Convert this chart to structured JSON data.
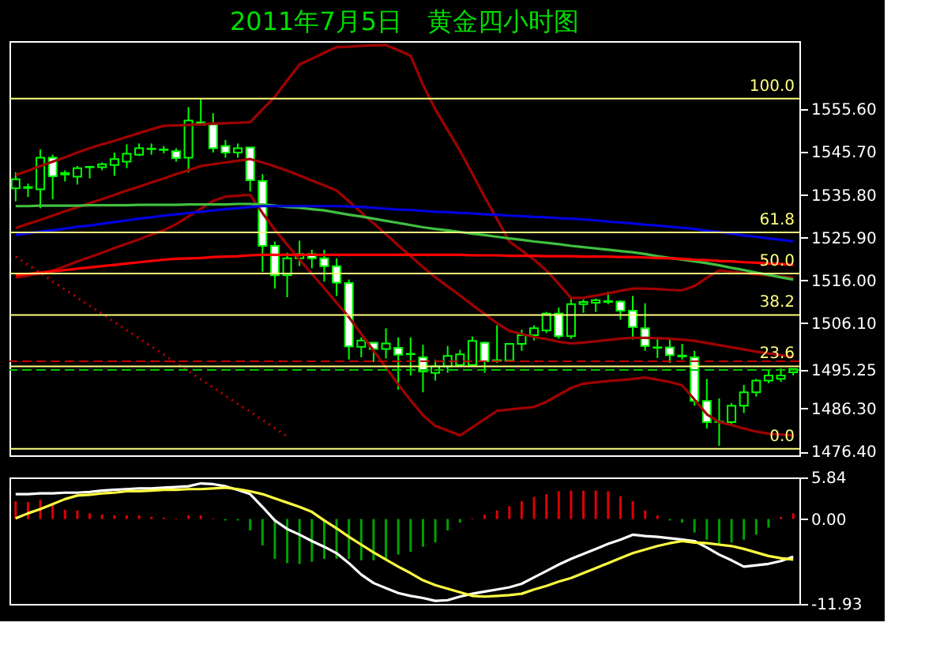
{
  "chart_data": [
    {
      "type": "candlestick",
      "title": "2011年7月5日　黄金四小时图",
      "color": "#00ff00",
      "categories": [
        null,
        null,
        null,
        null,
        null,
        null,
        null,
        null,
        null,
        null,
        null,
        null,
        null,
        null,
        null,
        null,
        null,
        null,
        null,
        null,
        null,
        null,
        null,
        null,
        null,
        null,
        null,
        null,
        null,
        null,
        null,
        null,
        null,
        null,
        null,
        null,
        null,
        null,
        null,
        null,
        null,
        null,
        null,
        null,
        null,
        null,
        null,
        null,
        null,
        null,
        null,
        null,
        null,
        null,
        null,
        null,
        null,
        null,
        null,
        null,
        null,
        null,
        null,
        null
      ],
      "ohlc": [
        [
          1537.3,
          1541.0,
          1534.3,
          1539.4
        ],
        [
          1537.4,
          1538.4,
          1535.3,
          1537.6
        ],
        [
          1537.1,
          1546.3,
          1532.7,
          1544.4
        ],
        [
          1544.4,
          1545.1,
          1534.8,
          1540.1
        ],
        [
          1540.5,
          1541.5,
          1538.9,
          1540.9
        ],
        [
          1540.0,
          1542.5,
          1538.2,
          1542.0
        ],
        [
          1542.2,
          1542.4,
          1539.6,
          1542.3
        ],
        [
          1542.2,
          1543.3,
          1541.5,
          1542.9
        ],
        [
          1542.7,
          1545.6,
          1540.2,
          1544.1
        ],
        [
          1543.5,
          1547.5,
          1542.0,
          1545.3
        ],
        [
          1545.1,
          1547.7,
          1544.8,
          1546.6
        ],
        [
          1546.4,
          1547.7,
          1545.1,
          1546.5
        ],
        [
          1546.2,
          1547.1,
          1545.4,
          1546.3
        ],
        [
          1545.9,
          1546.6,
          1543.5,
          1544.3
        ],
        [
          1544.4,
          1556.1,
          1541.0,
          1553.0
        ],
        [
          1552.6,
          1558.0,
          1551.8,
          1552.0
        ],
        [
          1552.1,
          1554.7,
          1545.6,
          1546.6
        ],
        [
          1547.1,
          1548.5,
          1544.4,
          1545.6
        ],
        [
          1545.6,
          1547.7,
          1544.4,
          1546.6
        ],
        [
          1546.8,
          1546.8,
          1536.6,
          1539.2
        ],
        [
          1539.0,
          1540.6,
          1518.0,
          1524.0
        ],
        [
          1524.0,
          1525.0,
          1514.1,
          1517.2
        ],
        [
          1517.2,
          1522.4,
          1512.1,
          1521.1
        ],
        [
          1521.1,
          1525.2,
          1519.3,
          1522.1
        ],
        [
          1522.1,
          1523.1,
          1518.8,
          1521.1
        ],
        [
          1521.1,
          1523.1,
          1515.7,
          1519.3
        ],
        [
          1519.3,
          1521.1,
          1512.4,
          1515.5
        ],
        [
          1515.4,
          1516.2,
          1497.7,
          1500.7
        ],
        [
          1500.6,
          1502.8,
          1498.2,
          1502.1
        ],
        [
          1501.6,
          1501.6,
          1497.1,
          1500.1
        ],
        [
          1500.1,
          1504.9,
          1497.9,
          1501.4
        ],
        [
          1500.4,
          1502.8,
          1490.7,
          1498.8
        ],
        [
          1499.0,
          1502.8,
          1494.0,
          1498.9
        ],
        [
          1498.2,
          1501.1,
          1490.1,
          1494.9
        ],
        [
          1494.6,
          1497.6,
          1492.8,
          1496.1
        ],
        [
          1496.1,
          1500.8,
          1494.6,
          1498.5
        ],
        [
          1496.4,
          1499.9,
          1496.4,
          1498.9
        ],
        [
          1496.4,
          1503.0,
          1496.1,
          1502.0
        ],
        [
          1501.6,
          1501.8,
          1494.6,
          1497.3
        ],
        [
          1497.5,
          1505.6,
          1496.9,
          1497.4
        ],
        [
          1497.4,
          1501.5,
          1497.1,
          1501.3
        ],
        [
          1501.3,
          1504.6,
          1499.7,
          1503.3
        ],
        [
          1503.3,
          1505.6,
          1502.1,
          1504.9
        ],
        [
          1504.4,
          1508.7,
          1503.8,
          1508.3
        ],
        [
          1508.3,
          1509.7,
          1502.5,
          1503.1
        ],
        [
          1503.1,
          1512.1,
          1502.5,
          1510.5
        ],
        [
          1510.5,
          1511.6,
          1508.5,
          1511.0
        ],
        [
          1510.8,
          1511.8,
          1508.7,
          1511.4
        ],
        [
          1511.0,
          1513.4,
          1510.5,
          1511.2
        ],
        [
          1511.1,
          1511.4,
          1506.9,
          1509.0
        ],
        [
          1509.0,
          1512.4,
          1502.3,
          1505.2
        ],
        [
          1504.9,
          1510.7,
          1499.7,
          1500.8
        ],
        [
          1500.5,
          1502.8,
          1498.0,
          1500.4
        ],
        [
          1500.5,
          1502.3,
          1496.9,
          1498.7
        ],
        [
          1498.4,
          1501.3,
          1497.7,
          1498.6
        ],
        [
          1498.2,
          1499.7,
          1487.0,
          1488.1
        ],
        [
          1488.1,
          1493.2,
          1481.7,
          1483.2
        ],
        [
          1483.2,
          1488.7,
          1477.7,
          1483.3
        ],
        [
          1483.2,
          1487.6,
          1482.7,
          1487.0
        ],
        [
          1487.0,
          1491.8,
          1485.3,
          1490.1
        ],
        [
          1490.1,
          1493.2,
          1489.1,
          1492.8
        ],
        [
          1492.8,
          1495.3,
          1492.2,
          1494.0
        ],
        [
          1493.2,
          1495.6,
          1492.5,
          1494.0
        ],
        [
          1494.7,
          1495.6,
          1494.0,
          1495.5
        ]
      ],
      "series": [
        {
          "type": "line",
          "color": "#a00000",
          "values": [
            1540.4,
            1541.4,
            1542.5,
            1543.5,
            1544.5,
            1545.6,
            1546.6,
            1547.5,
            1548.3,
            1549.2,
            1550.1,
            1551.0,
            1551.8,
            1551.9,
            1552.0,
            1552.1,
            1552.3,
            1552.4,
            1552.5,
            1552.6,
            1555.6,
            1558.5,
            1562.3,
            1566.0,
            1567.3,
            1568.7,
            1570.0,
            1570.1,
            1570.3,
            1570.4,
            1570.5,
            1569.3,
            1568.0,
            1561.3,
            1555.6,
            1550.8,
            1546.0,
            1540.7,
            1535.3,
            1530.2,
            1525.0,
            1522.9,
            1520.8,
            1518.3,
            1515.2,
            1511.9,
            1512.0,
            1512.5,
            1513.0,
            1513.6,
            1514.1,
            1514.1,
            1514.0,
            1513.8,
            1513.7,
            1514.7,
            1516.6,
            1518.3,
            1518.0,
            1517.7,
            1517.4,
            1517.2,
            1516.9,
            1516.6
          ]
        },
        {
          "type": "line",
          "color": "#a00000",
          "values": [
            1528.1,
            1529.1,
            1530.0,
            1531.0,
            1532.0,
            1532.9,
            1533.9,
            1534.8,
            1535.8,
            1536.8,
            1537.7,
            1538.7,
            1539.6,
            1540.6,
            1541.5,
            1542.5,
            1542.9,
            1543.3,
            1543.7,
            1544.1,
            1543.3,
            1542.4,
            1541.4,
            1540.3,
            1539.1,
            1538.0,
            1536.8,
            1534.3,
            1531.7,
            1529.2,
            1526.7,
            1524.1,
            1521.6,
            1519.1,
            1516.7,
            1514.6,
            1512.5,
            1510.3,
            1508.2,
            1506.1,
            1504.3,
            1503.6,
            1502.9,
            1502.4,
            1501.8,
            1501.4,
            1501.6,
            1501.9,
            1502.2,
            1502.5,
            1502.7,
            1502.7,
            1502.6,
            1502.5,
            1502.3,
            1502.0,
            1501.5,
            1501.0,
            1500.5,
            1500.0,
            1499.5,
            1499.1,
            1498.7,
            1498.3
          ]
        },
        {
          "type": "line",
          "color": "#a00000",
          "values": [
            1516.7,
            1517.1,
            1517.6,
            1518.3,
            1519.3,
            1520.4,
            1521.4,
            1522.4,
            1523.5,
            1524.5,
            1525.5,
            1526.6,
            1527.6,
            1529.0,
            1530.8,
            1532.6,
            1534.4,
            1535.4,
            1535.6,
            1535.8,
            1531.6,
            1527.7,
            1524.3,
            1520.8,
            1517.5,
            1514.2,
            1510.8,
            1507.5,
            1503.6,
            1499.7,
            1495.8,
            1491.9,
            1488.2,
            1484.8,
            1482.3,
            1481.2,
            1480.1,
            1482.0,
            1483.9,
            1485.8,
            1486.1,
            1486.4,
            1486.7,
            1487.9,
            1489.5,
            1491.1,
            1492.1,
            1492.4,
            1492.7,
            1492.9,
            1493.2,
            1493.5,
            1493.0,
            1492.5,
            1491.7,
            1488.4,
            1485.0,
            1483.2,
            1482.5,
            1481.7,
            1481.0,
            1480.5,
            1480.3,
            1480.1
          ]
        },
        {
          "type": "line",
          "color": "#40c040",
          "values": [
            1533.2,
            1533.2,
            1533.3,
            1533.3,
            1533.3,
            1533.3,
            1533.4,
            1533.4,
            1533.4,
            1533.4,
            1533.5,
            1533.5,
            1533.5,
            1533.5,
            1533.6,
            1533.6,
            1533.6,
            1533.6,
            1533.7,
            1533.7,
            1533.6,
            1533.3,
            1533.0,
            1532.8,
            1532.5,
            1532.2,
            1531.7,
            1531.2,
            1530.8,
            1530.3,
            1529.8,
            1529.3,
            1528.8,
            1528.3,
            1527.9,
            1527.6,
            1527.2,
            1526.8,
            1526.5,
            1526.1,
            1525.7,
            1525.4,
            1525.0,
            1524.7,
            1524.4,
            1524.0,
            1523.7,
            1523.4,
            1523.1,
            1522.8,
            1522.5,
            1522.1,
            1521.6,
            1521.2,
            1520.8,
            1520.4,
            1520.0,
            1519.5,
            1518.9,
            1518.4,
            1517.8,
            1517.3,
            1516.7,
            1516.2
          ]
        },
        {
          "type": "line",
          "color": "#0000e0",
          "values": [
            1526.5,
            1526.9,
            1527.3,
            1527.6,
            1528.0,
            1528.4,
            1528.7,
            1529.1,
            1529.5,
            1529.9,
            1530.3,
            1530.6,
            1531.0,
            1531.3,
            1531.6,
            1531.9,
            1532.2,
            1532.5,
            1532.7,
            1533.0,
            1533.2,
            1533.2,
            1533.2,
            1533.2,
            1533.2,
            1533.2,
            1533.2,
            1533.1,
            1533.0,
            1532.8,
            1532.6,
            1532.4,
            1532.3,
            1532.1,
            1531.9,
            1531.8,
            1531.6,
            1531.5,
            1531.3,
            1531.2,
            1531.0,
            1530.9,
            1530.7,
            1530.6,
            1530.4,
            1530.3,
            1530.1,
            1529.9,
            1529.6,
            1529.4,
            1529.2,
            1528.9,
            1528.7,
            1528.4,
            1528.2,
            1527.9,
            1527.5,
            1527.2,
            1526.8,
            1526.4,
            1526.1,
            1525.7,
            1525.4,
            1525.0
          ]
        },
        {
          "type": "line",
          "color": "#ff0000",
          "values": [
            1517.2,
            1517.5,
            1517.8,
            1518.1,
            1518.4,
            1518.7,
            1519.0,
            1519.3,
            1519.6,
            1519.9,
            1520.2,
            1520.5,
            1520.8,
            1521.0,
            1521.1,
            1521.2,
            1521.4,
            1521.5,
            1521.6,
            1521.8,
            1521.9,
            1521.9,
            1521.9,
            1521.9,
            1521.9,
            1521.9,
            1521.9,
            1521.9,
            1521.9,
            1521.9,
            1521.9,
            1521.9,
            1521.9,
            1521.9,
            1521.9,
            1521.9,
            1521.9,
            1521.8,
            1521.8,
            1521.8,
            1521.7,
            1521.7,
            1521.7,
            1521.6,
            1521.6,
            1521.6,
            1521.5,
            1521.5,
            1521.5,
            1521.4,
            1521.4,
            1521.3,
            1521.2,
            1521.1,
            1521.0,
            1520.8,
            1520.7,
            1520.5,
            1520.4,
            1520.2,
            1520.1,
            1519.9,
            1519.8,
            1519.6
          ]
        },
        {
          "type": "line",
          "color": "#c00000",
          "line_style": "dotted",
          "values": [
            1521.5,
            1519.6,
            1517.7,
            1515.8,
            1513.9,
            1512.0,
            1510.1,
            1508.3,
            1506.4,
            1504.5,
            1502.6,
            1500.7,
            1498.8,
            1496.9,
            1495.0,
            1493.1,
            1491.2,
            1489.3,
            1487.4,
            1485.6,
            1483.7,
            1481.8,
            1479.9,
            null,
            null,
            null,
            null,
            null,
            null,
            null,
            null,
            null,
            null,
            null,
            null,
            null,
            null,
            null,
            null,
            null,
            null,
            null,
            null,
            null,
            null,
            null,
            null,
            null,
            null,
            null,
            null,
            null,
            null,
            null,
            null,
            null,
            null,
            null,
            null,
            null,
            null,
            null,
            null,
            null
          ]
        }
      ],
      "ref_lines": [
        {
          "axis": "y",
          "value": 1558.1,
          "color": "#ffff80"
        },
        {
          "axis": "y",
          "value": 1527.1,
          "color": "#ffff80"
        },
        {
          "axis": "y",
          "value": 1517.6,
          "color": "#ffff80"
        },
        {
          "axis": "y",
          "value": 1508.0,
          "color": "#ffff80"
        },
        {
          "axis": "y",
          "value": 1496.1,
          "color": "#ffff80"
        },
        {
          "axis": "y",
          "value": 1477.0,
          "color": "#ffff80"
        },
        {
          "axis": "y",
          "value": 1497.3,
          "color": "#c00000",
          "line_style": "dashed"
        },
        {
          "axis": "y",
          "value": 1495.25,
          "color": "#00c000",
          "line_style": "dashed"
        }
      ],
      "annotations": [
        {
          "text": "100.0",
          "y": 1558.1
        },
        {
          "text": "61.8",
          "y": 1527.1
        },
        {
          "text": "50.0",
          "y": 1517.6
        },
        {
          "text": "38.2",
          "y": 1508.0
        },
        {
          "text": "23.6",
          "y": 1496.1
        },
        {
          "text": "0.0",
          "y": 1477.0
        }
      ],
      "ylim": [
        1475.5,
        1571.4
      ],
      "yticks": [
        {
          "value": 1555.6,
          "label": "1555.60"
        },
        {
          "value": 1545.7,
          "label": "1545.70"
        },
        {
          "value": 1535.8,
          "label": "1535.80"
        },
        {
          "value": 1525.9,
          "label": "1525.90"
        },
        {
          "value": 1516.0,
          "label": "1516.00"
        },
        {
          "value": 1506.1,
          "label": "1506.10"
        },
        {
          "value": 1495.25,
          "label": "1495.25"
        },
        {
          "value": 1486.3,
          "label": "1486.30"
        },
        {
          "value": 1476.4,
          "label": "1476.40"
        }
      ],
      "tick_labels": "y",
      "grid": false
    },
    {
      "type": "bar",
      "ylim": [
        -11.93,
        5.84
      ],
      "categories": [
        null,
        null,
        null,
        null,
        null,
        null,
        null,
        null,
        null,
        null,
        null,
        null,
        null,
        null,
        null,
        null,
        null,
        null,
        null,
        null,
        null,
        null,
        null,
        null,
        null,
        null,
        null,
        null,
        null,
        null,
        null,
        null,
        null,
        null,
        null,
        null,
        null,
        null,
        null,
        null,
        null,
        null,
        null,
        null,
        null,
        null,
        null,
        null,
        null,
        null,
        null,
        null,
        null,
        null,
        null,
        null,
        null,
        null,
        null,
        null,
        null,
        null,
        null,
        null
      ],
      "yticks": [
        5.84,
        {
          "value": 0,
          "label": "0.00"
        },
        -11.93
      ],
      "tick_labels": "y",
      "grid": false,
      "series": [
        {
          "type": "bar",
          "values": [
            2.5,
            2.4,
            2.7,
            2.0,
            1.3,
            1.2,
            0.8,
            0.6,
            0.5,
            0.5,
            0.5,
            0.3,
            0.2,
            0.1,
            0.5,
            0.5,
            0.1,
            -0.2,
            -0.2,
            -1.6,
            -3.7,
            -5.6,
            -6.2,
            -6.3,
            -6.0,
            -5.6,
            -5.6,
            -5.6,
            -5.8,
            -5.8,
            -5.6,
            -5.0,
            -4.6,
            -3.9,
            -3.3,
            -1.6,
            -0.5,
            0.1,
            0.6,
            1.2,
            1.8,
            2.5,
            3.1,
            3.5,
            3.9,
            4.0,
            4.0,
            4.0,
            3.9,
            3.2,
            2.5,
            1.2,
            0.5,
            -0.2,
            -0.5,
            -1.9,
            -2.9,
            -3.5,
            -3.3,
            -2.9,
            -2.2,
            -1.2,
            0.3,
            0.8
          ],
          "colors": [
            "#e00000",
            "#e00000",
            "#e00000",
            "#e00000",
            "#e00000",
            "#e00000",
            "#e00000",
            "#e00000",
            "#e00000",
            "#e00000",
            "#e00000",
            "#e00000",
            "#e00000",
            "#e00000",
            "#e00000",
            "#e00000",
            "#e00000",
            "#00a000",
            "#00a000",
            "#00a000",
            "#00a000",
            "#00a000",
            "#00a000",
            "#00a000",
            "#00a000",
            "#00a000",
            "#00a000",
            "#00a000",
            "#00a000",
            "#00a000",
            "#00a000",
            "#00a000",
            "#00a000",
            "#00a000",
            "#00a000",
            "#00a000",
            "#00a000",
            "#e00000",
            "#e00000",
            "#e00000",
            "#e00000",
            "#e00000",
            "#e00000",
            "#e00000",
            "#e00000",
            "#e00000",
            "#e00000",
            "#e00000",
            "#e00000",
            "#e00000",
            "#e00000",
            "#e00000",
            "#e00000",
            "#00a000",
            "#00a000",
            "#00a000",
            "#00a000",
            "#00a000",
            "#00a000",
            "#00a000",
            "#00a000",
            "#00a000",
            "#e00000",
            "#e00000"
          ]
        },
        {
          "type": "line",
          "color": "#ffffff",
          "values": [
            3.5,
            3.5,
            3.6,
            3.6,
            3.7,
            3.7,
            3.8,
            4.0,
            4.1,
            4.2,
            4.3,
            4.3,
            4.4,
            4.5,
            4.6,
            5.0,
            4.9,
            4.6,
            4.1,
            3.5,
            1.7,
            -0.2,
            -1.4,
            -2.2,
            -3.1,
            -3.9,
            -4.8,
            -6.2,
            -7.8,
            -9.0,
            -9.7,
            -10.4,
            -10.8,
            -11.1,
            -11.5,
            -11.4,
            -10.9,
            -10.5,
            -10.2,
            -9.9,
            -9.6,
            -9.1,
            -8.2,
            -7.3,
            -6.4,
            -5.6,
            -4.9,
            -4.2,
            -3.5,
            -2.9,
            -2.2,
            -2.4,
            -2.5,
            -2.7,
            -2.9,
            -3.1,
            -4.0,
            -5.0,
            -5.8,
            -6.7,
            -6.5,
            -6.3,
            -5.9,
            -5.3
          ]
        },
        {
          "type": "line",
          "color": "#ffff40",
          "values": [
            0.1,
            0.8,
            1.4,
            2.1,
            2.8,
            3.3,
            3.4,
            3.6,
            3.7,
            3.9,
            3.9,
            4.0,
            4.1,
            4.1,
            4.2,
            4.2,
            4.3,
            4.4,
            4.2,
            3.9,
            3.5,
            2.9,
            2.3,
            1.7,
            1.0,
            -0.2,
            -1.3,
            -2.5,
            -3.6,
            -4.7,
            -5.7,
            -6.7,
            -7.6,
            -8.6,
            -9.3,
            -9.8,
            -10.3,
            -10.8,
            -10.9,
            -10.8,
            -10.7,
            -10.5,
            -9.9,
            -9.4,
            -8.8,
            -8.3,
            -7.6,
            -6.9,
            -6.2,
            -5.5,
            -4.8,
            -4.3,
            -3.8,
            -3.4,
            -3.1,
            -3.3,
            -3.4,
            -3.6,
            -3.8,
            -4.2,
            -4.7,
            -5.2,
            -5.5,
            -5.7
          ]
        }
      ]
    }
  ]
}
